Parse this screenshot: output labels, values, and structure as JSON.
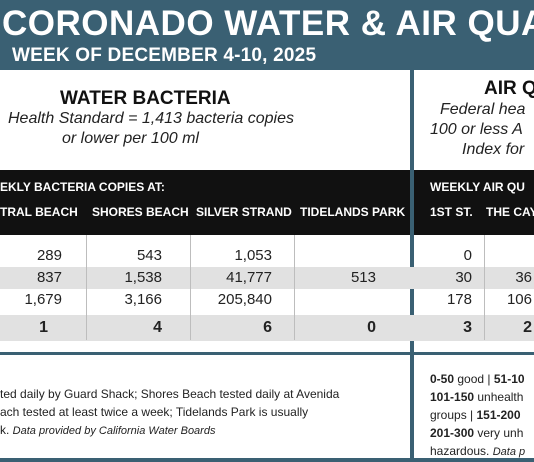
{
  "header": {
    "title": "CORONADO WATER & AIR QUALITY R",
    "subtitle": "WEEK OF DECEMBER 4-10, 2025"
  },
  "water": {
    "heading": "WATER BACTERIA",
    "standard_line1": "Health Standard  = 1,413 bacteria copies",
    "standard_line2": "or lower per 100 ml",
    "bar_label": "EKLY BACTERIA COPIES AT:",
    "columns": [
      "TRAL BEACH",
      "SHORES BEACH",
      "SILVER STRAND",
      "TIDELANDS PARK"
    ],
    "rows": [
      [
        "289",
        "543",
        "1,053",
        ""
      ],
      [
        "837",
        "1,538",
        "41,777",
        "513"
      ],
      [
        "1,679",
        "3,166",
        "205,840",
        ""
      ]
    ],
    "totals": [
      "1",
      "4",
      "6",
      "0"
    ],
    "footer_line1": "ted daily by Guard Shack; Shores Beach tested daily at Avenida",
    "footer_line2": "ach tested at least twice a week; Tidelands Park is usually",
    "footer_line3_pre": "k. ",
    "footer_source": "Data provided by California Water Boards"
  },
  "air": {
    "heading": "AIR Q",
    "standard_line1": "Federal hea",
    "standard_line2": "100 or less A",
    "standard_line3": "Index for",
    "bar_label": "WEEKLY AIR QU",
    "columns": [
      "1ST ST.",
      "THE CAY"
    ],
    "rows": [
      [
        "0",
        ""
      ],
      [
        "30",
        "36"
      ],
      [
        "178",
        "106"
      ]
    ],
    "totals": [
      "3",
      "2"
    ],
    "footer": {
      "l1_a": "0-50",
      "l1_b": " good | ",
      "l1_c": "51-10",
      "l2_a": "101-150",
      "l2_b": " unhealth",
      "l3_a": "groups | ",
      "l3_b": "151-200",
      "l4_a": "201-300",
      "l4_b": " very unh",
      "l5_a": "hazardous. ",
      "l5_b": "Data p"
    }
  },
  "colors": {
    "banner": "#3a6073",
    "column_bar": "#111111",
    "shaded_row": "#e1e1e1"
  }
}
